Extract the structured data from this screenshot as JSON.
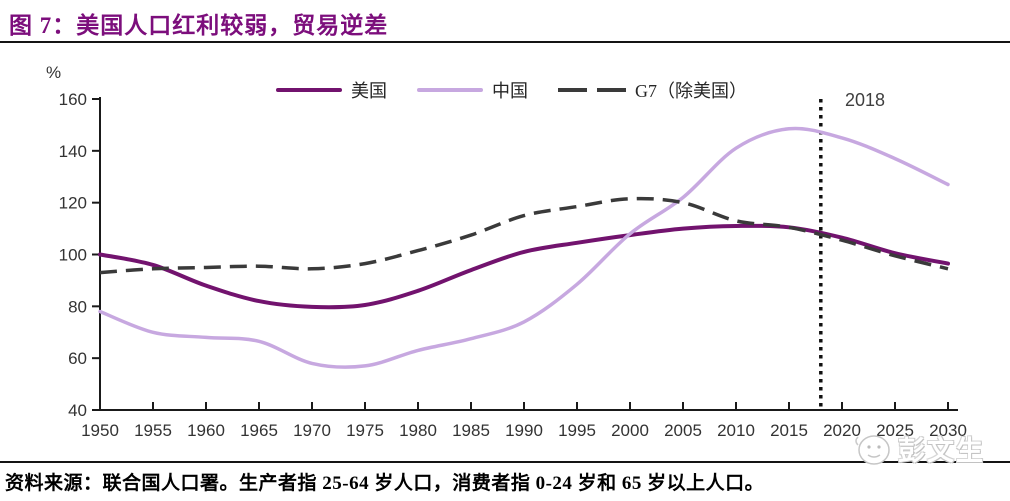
{
  "title": "图 7：美国人口红利较弱，贸易逆差",
  "y_axis_unit": "%",
  "annotation_2018": "2018",
  "source_note": "资料来源：联合国人口署。生产者指 25-64 岁人口，消费者指 0-24 岁和 65 岁以上人口。",
  "watermark_text": "彭文生",
  "colors": {
    "title": "#7c0e7c",
    "us_line": "#72136E",
    "china_line": "#C7A8E0",
    "g7_line": "#3a3a3a",
    "axis": "#1a1a1a",
    "tick_text": "#333333",
    "vline": "#111111"
  },
  "chart_data": {
    "type": "line",
    "title": "图 7：美国人口红利较弱，贸易逆差",
    "xlabel": "",
    "ylabel": "%",
    "xlim": [
      1950,
      2030
    ],
    "ylim": [
      40,
      160
    ],
    "xticks": [
      1950,
      1955,
      1960,
      1965,
      1970,
      1975,
      1980,
      1985,
      1990,
      1995,
      2000,
      2005,
      2010,
      2015,
      2020,
      2025,
      2030
    ],
    "yticks": [
      40,
      60,
      80,
      100,
      120,
      140,
      160
    ],
    "grid": false,
    "legend_position": "top",
    "x": [
      1950,
      1955,
      1960,
      1965,
      1970,
      1975,
      1980,
      1985,
      1990,
      1995,
      2000,
      2005,
      2010,
      2015,
      2020,
      2025,
      2030
    ],
    "series": [
      {
        "name": "美国",
        "style": "solid",
        "color": "#72136E",
        "values": [
          100,
          96,
          88,
          82,
          79.8,
          80.5,
          86,
          94,
          101,
          104.5,
          107.5,
          110,
          111,
          110.5,
          106.5,
          100.5,
          96.5
        ]
      },
      {
        "name": "中国",
        "style": "solid",
        "color": "#C7A8E0",
        "values": [
          78,
          70,
          68,
          66.5,
          58,
          57,
          63,
          67.5,
          74,
          88.5,
          108,
          122,
          141,
          148.5,
          145,
          137,
          127
        ]
      },
      {
        "name": "G7（除美国）",
        "style": "dashed",
        "color": "#3a3a3a",
        "values": [
          93,
          94.5,
          95,
          95.5,
          94.5,
          96.5,
          101.5,
          107.5,
          115,
          118.5,
          121.5,
          120,
          113,
          110.5,
          105.5,
          99.5,
          94.5
        ]
      }
    ],
    "vline": {
      "x": 2018,
      "label": "2018",
      "style": "dotted"
    }
  }
}
